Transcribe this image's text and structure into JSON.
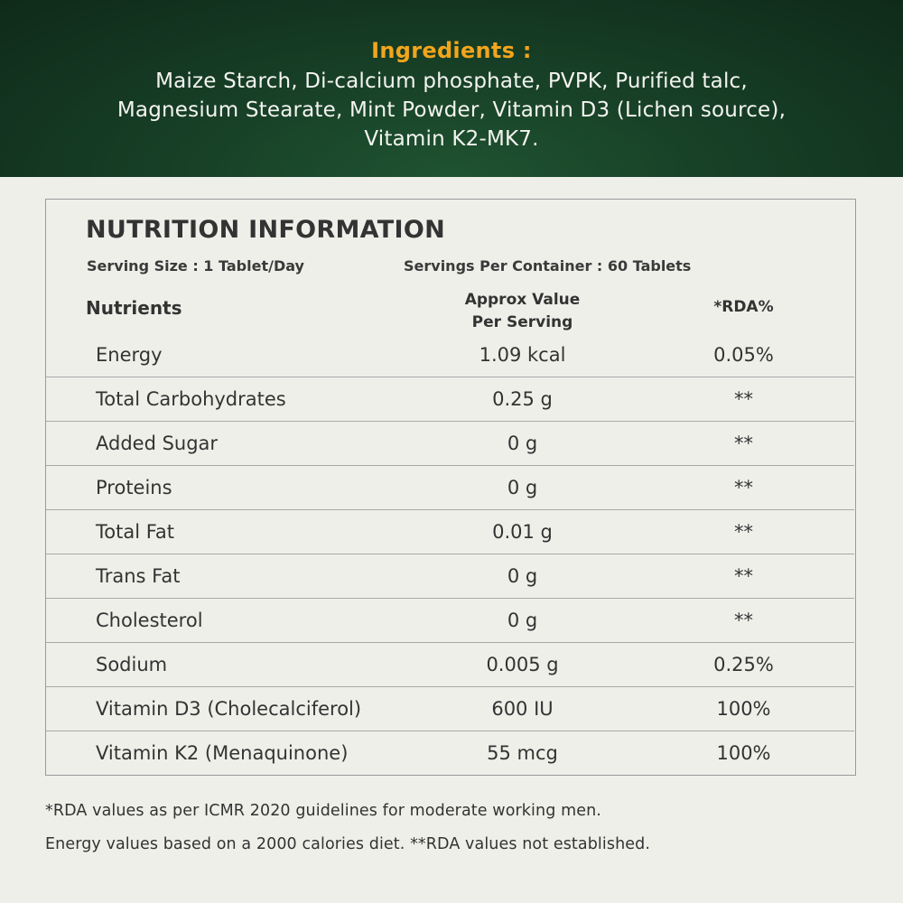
{
  "ingredients": {
    "title": "Ingredients :",
    "lines": [
      "Maize Starch, Di-calcium phosphate, PVPK, Purified talc,",
      "Magnesium Stearate, Mint Powder, Vitamin D3 (Lichen source),",
      "Vitamin K2-MK7."
    ]
  },
  "nutrition": {
    "title": "NUTRITION INFORMATION",
    "serving_size": "Serving Size : 1 Tablet/Day",
    "servings_per_container": "Servings Per Container : 60 Tablets",
    "headers": {
      "nutrients": "Nutrients",
      "value_line1": "Approx Value",
      "value_line2": "Per Serving",
      "rda": "*RDA%"
    },
    "rows": [
      {
        "name": "Energy",
        "value": "1.09 kcal",
        "rda": "0.05%"
      },
      {
        "name": "Total Carbohydrates",
        "value": "0.25 g",
        "rda": "**"
      },
      {
        "name": "Added Sugar",
        "value": "0 g",
        "rda": "**"
      },
      {
        "name": "Proteins",
        "value": "0 g",
        "rda": "**"
      },
      {
        "name": "Total Fat",
        "value": "0.01 g",
        "rda": "**"
      },
      {
        "name": "Trans Fat",
        "value": "0 g",
        "rda": "**"
      },
      {
        "name": "Cholesterol",
        "value": "0 g",
        "rda": "**"
      },
      {
        "name": "Sodium",
        "value": "0.005 g",
        "rda": "0.25%"
      },
      {
        "name": "Vitamin D3 (Cholecalciferol)",
        "value": "600 IU",
        "rda": "100%"
      },
      {
        "name": "Vitamin K2 (Menaquinone)",
        "value": "55 mcg",
        "rda": "100%"
      }
    ]
  },
  "footnotes": [
    "*RDA values as per ICMR 2020 guidelines for moderate working men.",
    "Energy values based on a 2000 calories diet. **RDA values not established."
  ]
}
